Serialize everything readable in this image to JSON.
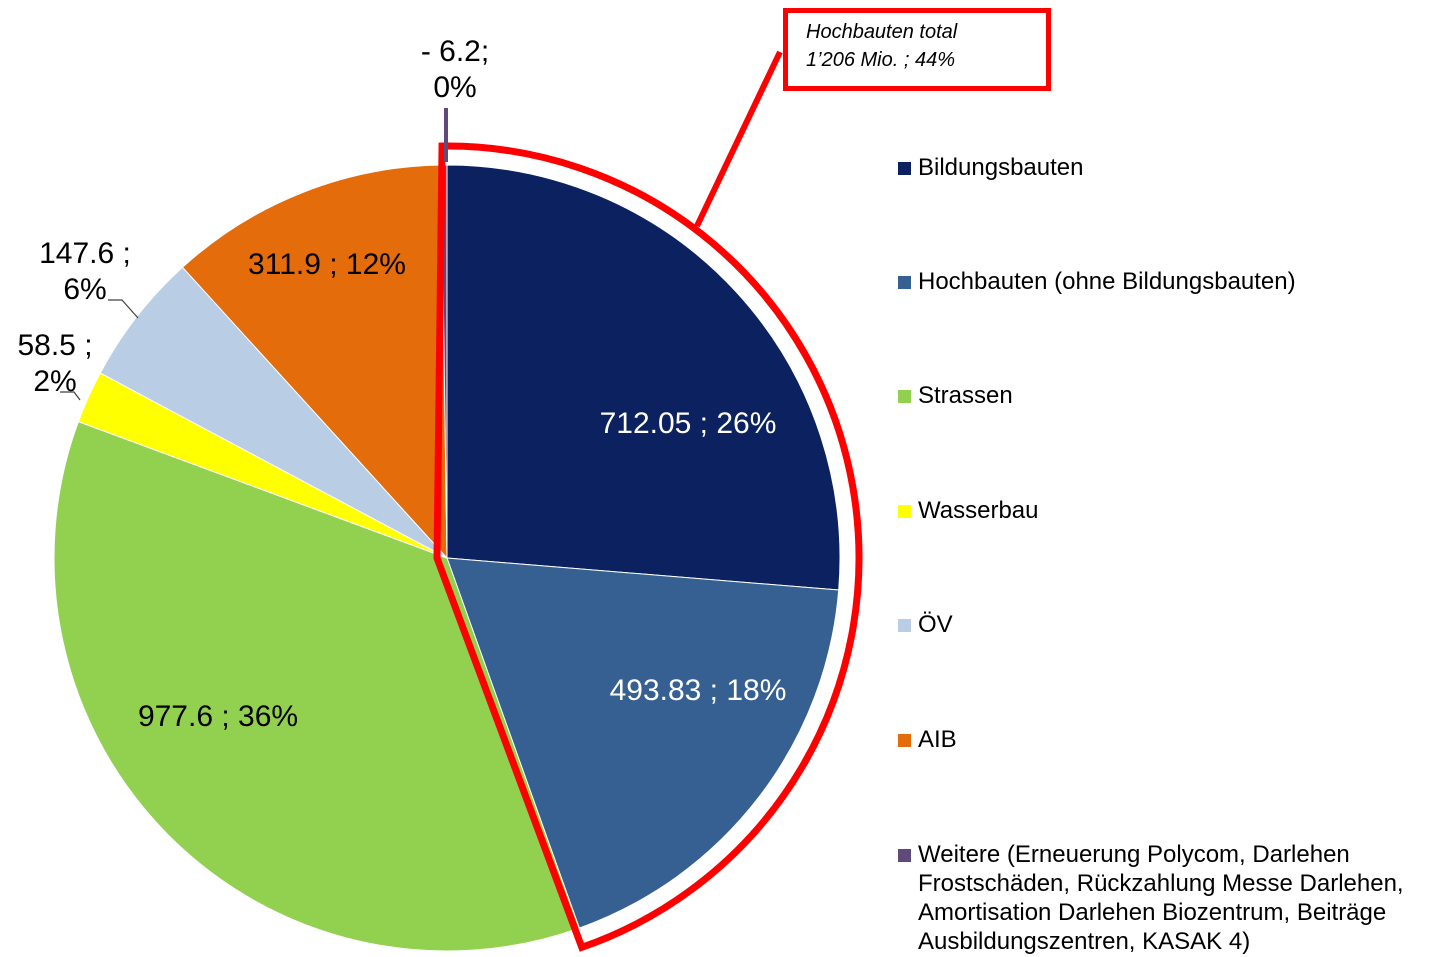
{
  "chart_data": {
    "type": "pie",
    "categories": [
      "Bildungsbauten",
      "Hochbauten (ohne Bildungsbauten)",
      "Strassen",
      "Wasserbau",
      "ÖV",
      "AIB",
      "Weitere (Erneuerung Polycom, Darlehen Frostschäden, Rückzahlung Messe Darlehen, Amortisation Darlehen Biozentrum, Beiträge Ausbildungszentren, KASAK 4)"
    ],
    "values": [
      712.05,
      493.83,
      977.6,
      58.5,
      147.6,
      311.9,
      -6.2
    ],
    "value_labels": [
      "712.05 ; 26%",
      "493.83 ; 18%",
      "977.6 ; 36%",
      "58.5 ;\n2%",
      "147.6 ;\n6%",
      "311.9 ; 12%",
      "- 6.2;\n0%"
    ],
    "colors": [
      "#0b2160",
      "#376092",
      "#92d050",
      "#ffff00",
      "#b9cde5",
      "#e46c0a",
      "#604a7b"
    ],
    "annotation": "Hochbauten total\n1’206 Mio. ; 44%",
    "legend": "right"
  }
}
